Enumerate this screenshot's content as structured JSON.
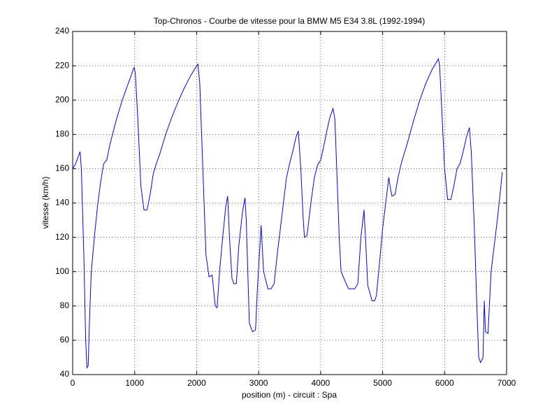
{
  "chart_data": {
    "type": "line",
    "title": "Top-Chronos - Courbe de vitesse pour la BMW M5 E34 3.8L (1992-1994)",
    "xlabel": "position (m) - circuit : Spa",
    "ylabel": "vitesse (km/h)",
    "color": "#0000ff",
    "grid": true,
    "xlim": [
      0,
      7000
    ],
    "xticks": [
      0,
      1000,
      2000,
      3000,
      4000,
      5000,
      6000,
      7000
    ],
    "ylim": [
      40,
      240
    ],
    "yticks": [
      40,
      60,
      80,
      100,
      120,
      140,
      160,
      180,
      200,
      220,
      240
    ],
    "x": [
      0,
      50,
      100,
      120,
      140,
      180,
      210,
      230,
      250,
      270,
      300,
      350,
      400,
      450,
      500,
      550,
      600,
      700,
      800,
      900,
      990,
      1010,
      1050,
      1100,
      1150,
      1200,
      1250,
      1300,
      1350,
      1400,
      1500,
      1600,
      1700,
      1800,
      1900,
      2000,
      2020,
      2050,
      2100,
      2150,
      2200,
      2250,
      2300,
      2330,
      2370,
      2420,
      2470,
      2500,
      2530,
      2570,
      2600,
      2640,
      2680,
      2740,
      2780,
      2800,
      2850,
      2900,
      2950,
      2980,
      3040,
      3080,
      3150,
      3200,
      3250,
      3300,
      3400,
      3450,
      3500,
      3550,
      3600,
      3640,
      3680,
      3720,
      3740,
      3780,
      3850,
      3900,
      3950,
      4000,
      4050,
      4100,
      4150,
      4200,
      4230,
      4270,
      4300,
      4330,
      4400,
      4450,
      4500,
      4550,
      4600,
      4650,
      4700,
      4730,
      4760,
      4830,
      4870,
      4900,
      4950,
      5000,
      5050,
      5100,
      5120,
      5150,
      5200,
      5250,
      5300,
      5400,
      5500,
      5600,
      5700,
      5800,
      5900,
      5920,
      5980,
      6000,
      6050,
      6100,
      6150,
      6200,
      6250,
      6300,
      6350,
      6400,
      6430,
      6480,
      6520,
      6550,
      6580,
      6620,
      6640,
      6660,
      6700,
      6750,
      6800,
      6850,
      6900,
      6930
    ],
    "values": [
      160,
      163,
      168,
      170,
      160,
      110,
      60,
      44,
      45,
      70,
      100,
      120,
      138,
      152,
      163,
      165,
      174,
      188,
      200,
      210,
      219,
      216,
      190,
      150,
      136,
      136,
      145,
      157,
      163,
      168,
      180,
      190,
      199,
      207,
      214,
      220,
      221,
      210,
      160,
      110,
      97,
      98,
      80,
      79,
      100,
      120,
      138,
      144,
      120,
      96,
      93,
      93,
      115,
      135,
      143,
      130,
      70,
      65,
      66,
      90,
      127,
      100,
      90,
      90,
      93,
      110,
      140,
      155,
      163,
      170,
      178,
      182,
      160,
      130,
      120,
      121,
      142,
      155,
      162,
      165,
      173,
      182,
      190,
      195,
      189,
      150,
      120,
      100,
      94,
      90,
      90,
      90,
      93,
      120,
      136,
      115,
      92,
      83,
      83,
      86,
      105,
      125,
      140,
      155,
      150,
      144,
      145,
      155,
      163,
      175,
      188,
      200,
      210,
      218,
      224,
      220,
      175,
      160,
      142,
      142,
      150,
      160,
      163,
      170,
      178,
      184,
      170,
      125,
      80,
      50,
      47,
      50,
      83,
      65,
      64,
      100,
      115,
      130,
      147,
      158
    ]
  }
}
